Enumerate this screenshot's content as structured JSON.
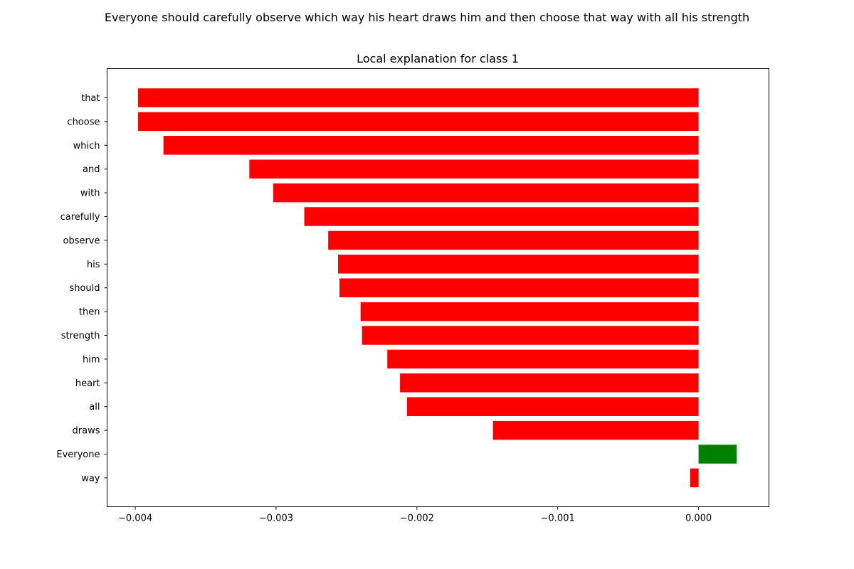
{
  "chart_data": {
    "type": "bar",
    "orientation": "horizontal",
    "suptitle": "Everyone should carefully observe which way his heart draws him and then choose that way with all his strength",
    "title": "Local explanation for class 1",
    "xlabel": "",
    "ylabel": "",
    "xlim": [
      -0.0042,
      0.0005
    ],
    "xticks": [
      -0.004,
      -0.003,
      -0.002,
      -0.001,
      0.0
    ],
    "xtick_labels": [
      "−0.004",
      "−0.003",
      "−0.002",
      "−0.001",
      "0.000"
    ],
    "grid": false,
    "categories": [
      "that",
      "choose",
      "which",
      "and",
      "with",
      "carefully",
      "observe",
      "his",
      "should",
      "then",
      "strength",
      "him",
      "heart",
      "all",
      "draws",
      "Everyone",
      "way"
    ],
    "values": [
      -0.00398,
      -0.00398,
      -0.0038,
      -0.00319,
      -0.00302,
      -0.0028,
      -0.00263,
      -0.00256,
      -0.00255,
      -0.0024,
      -0.00239,
      -0.00221,
      -0.00212,
      -0.00207,
      -0.00146,
      0.00027,
      -6e-05
    ],
    "colors": {
      "positive": "#008000",
      "negative": "#ff0000"
    }
  }
}
